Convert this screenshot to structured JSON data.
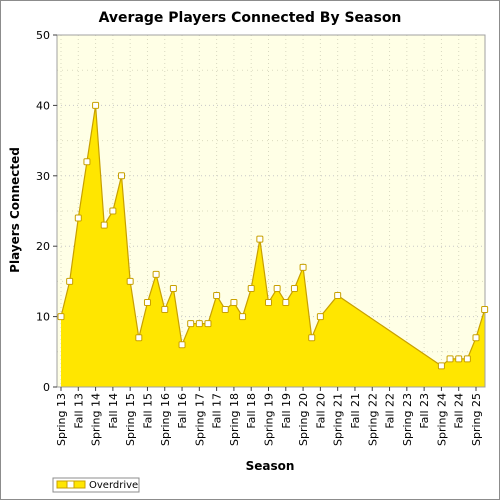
{
  "chart_data": {
    "type": "area",
    "title": "Average Players Connected By Season",
    "xlabel": "Season",
    "ylabel": "Players Connected",
    "ylim": [
      0,
      50
    ],
    "yticks": [
      0,
      10,
      20,
      30,
      40,
      50
    ],
    "grid": true,
    "legend_position": "bottom-left",
    "colors": {
      "fill": "#ffe600",
      "line": "#c8a000",
      "plot_bg": "#ffffe6"
    },
    "categories": [
      "Spring 13",
      "Fall 13",
      "Spring 14",
      "Fall 14",
      "Spring 15",
      "Fall 15",
      "Spring 16",
      "Fall 16",
      "Spring 17",
      "Fall 17",
      "Spring 18",
      "Fall 18",
      "Spring 19",
      "Fall 19",
      "Spring 20",
      "Fall 20",
      "Spring 21",
      "Fall 21",
      "Spring 22",
      "Fall 22",
      "Spring 23",
      "Fall 23",
      "Spring 24",
      "Fall 24",
      "Spring 25"
    ],
    "series": [
      {
        "name": "Overdrive",
        "points": [
          {
            "x": 0.0,
            "y": 10
          },
          {
            "x": 0.5,
            "y": 15
          },
          {
            "x": 1.0,
            "y": 24
          },
          {
            "x": 1.5,
            "y": 32
          },
          {
            "x": 2.0,
            "y": 40
          },
          {
            "x": 2.5,
            "y": 23
          },
          {
            "x": 3.0,
            "y": 25
          },
          {
            "x": 3.5,
            "y": 30
          },
          {
            "x": 4.0,
            "y": 15
          },
          {
            "x": 4.5,
            "y": 7
          },
          {
            "x": 5.0,
            "y": 12
          },
          {
            "x": 5.5,
            "y": 16
          },
          {
            "x": 6.0,
            "y": 11
          },
          {
            "x": 6.5,
            "y": 14
          },
          {
            "x": 7.0,
            "y": 6
          },
          {
            "x": 7.5,
            "y": 9
          },
          {
            "x": 8.0,
            "y": 9
          },
          {
            "x": 8.5,
            "y": 9
          },
          {
            "x": 9.0,
            "y": 13
          },
          {
            "x": 9.5,
            "y": 11
          },
          {
            "x": 10.0,
            "y": 12
          },
          {
            "x": 10.5,
            "y": 10
          },
          {
            "x": 11.0,
            "y": 14
          },
          {
            "x": 11.5,
            "y": 21
          },
          {
            "x": 12.0,
            "y": 12
          },
          {
            "x": 12.5,
            "y": 14
          },
          {
            "x": 13.0,
            "y": 12
          },
          {
            "x": 13.5,
            "y": 14
          },
          {
            "x": 14.0,
            "y": 17
          },
          {
            "x": 14.5,
            "y": 7
          },
          {
            "x": 15.0,
            "y": 10
          },
          {
            "x": 16.0,
            "y": 13
          },
          {
            "x": 22.0,
            "y": 3
          },
          {
            "x": 22.5,
            "y": 4
          },
          {
            "x": 23.0,
            "y": 4
          },
          {
            "x": 23.5,
            "y": 4
          },
          {
            "x": 24.0,
            "y": 7
          },
          {
            "x": 24.5,
            "y": 11
          }
        ]
      }
    ]
  }
}
